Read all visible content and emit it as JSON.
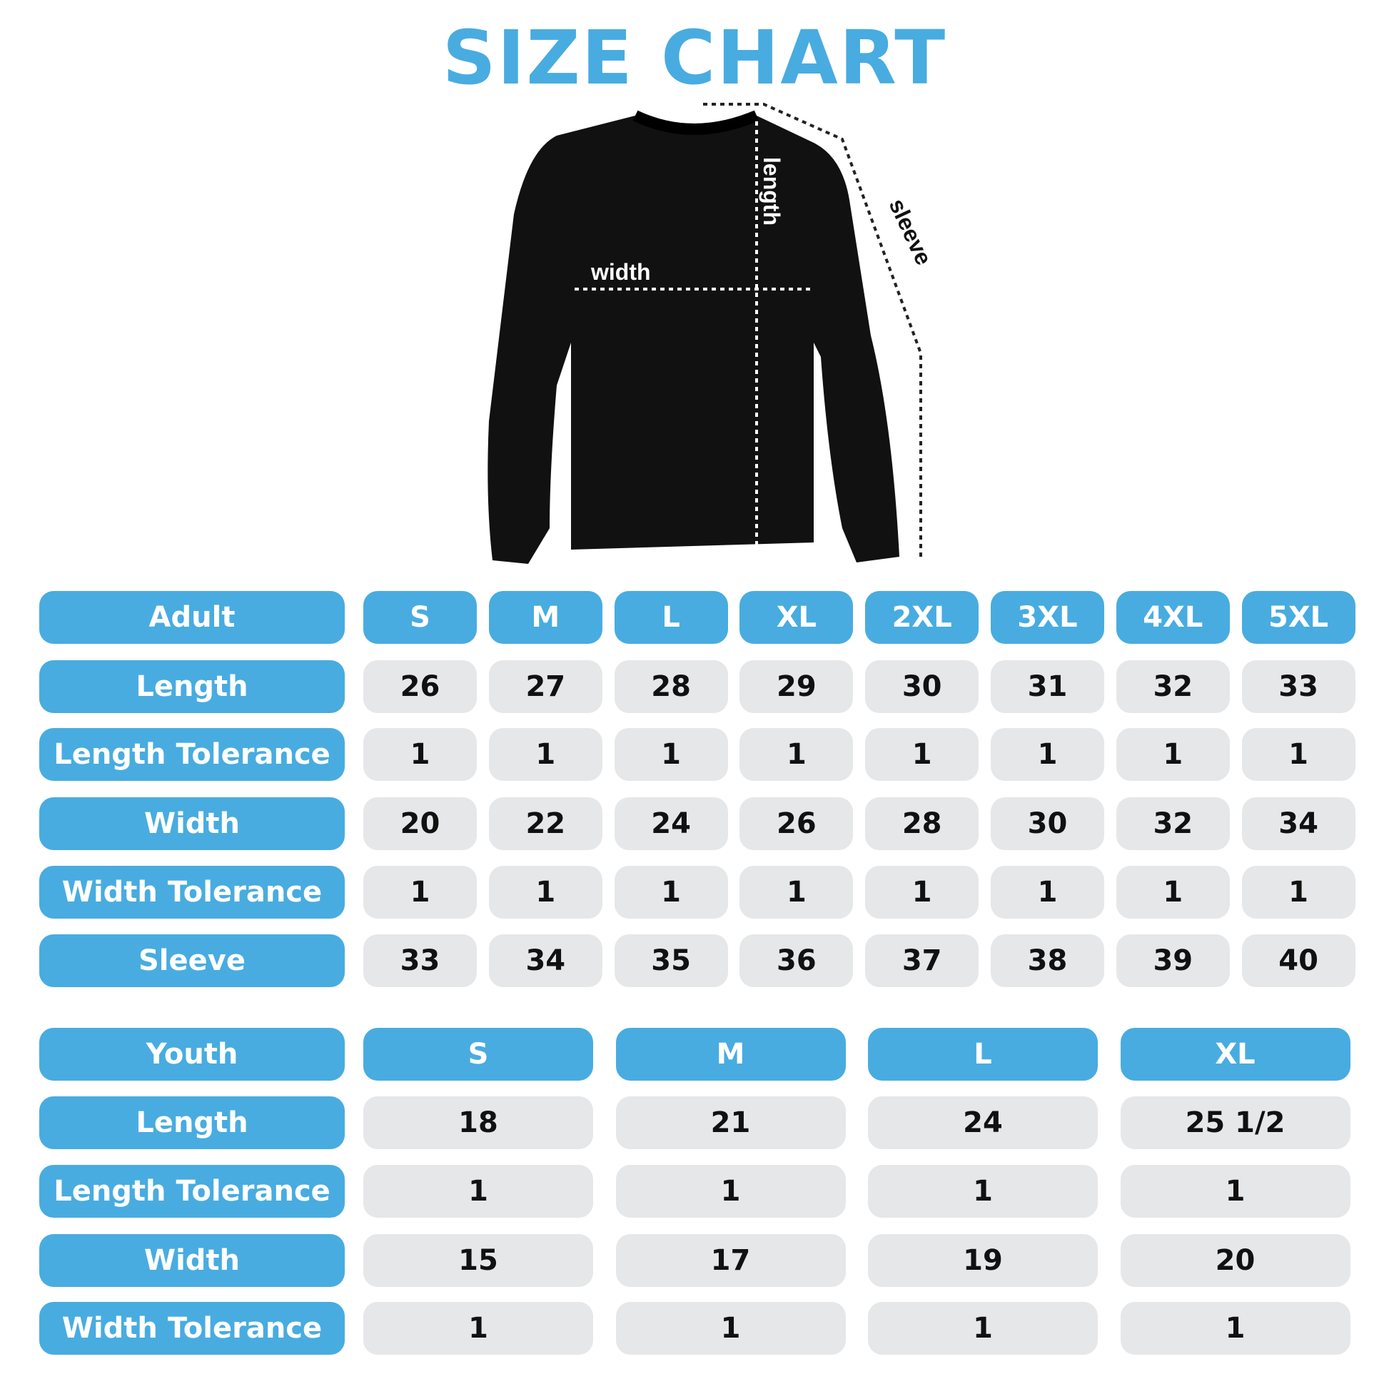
{
  "title": "SIZE CHART",
  "diagram_labels": {
    "length": "length",
    "width": "width",
    "sleeve": "sleeve"
  },
  "colors": {
    "accent": "#48ACE0",
    "cell": "#E6E7E9"
  },
  "adult": {
    "header": "Adult",
    "sizes": [
      "S",
      "M",
      "L",
      "XL",
      "2XL",
      "3XL",
      "4XL",
      "5XL"
    ],
    "rows": [
      {
        "label": "Length",
        "values": [
          "26",
          "27",
          "28",
          "29",
          "30",
          "31",
          "32",
          "33"
        ]
      },
      {
        "label": "Length Tolerance",
        "values": [
          "1",
          "1",
          "1",
          "1",
          "1",
          "1",
          "1",
          "1"
        ]
      },
      {
        "label": "Width",
        "values": [
          "20",
          "22",
          "24",
          "26",
          "28",
          "30",
          "32",
          "34"
        ]
      },
      {
        "label": "Width Tolerance",
        "values": [
          "1",
          "1",
          "1",
          "1",
          "1",
          "1",
          "1",
          "1"
        ]
      },
      {
        "label": "Sleeve",
        "values": [
          "33",
          "34",
          "35",
          "36",
          "37",
          "38",
          "39",
          "40"
        ]
      }
    ]
  },
  "youth": {
    "header": "Youth",
    "sizes": [
      "S",
      "M",
      "L",
      "XL"
    ],
    "rows": [
      {
        "label": "Length",
        "values": [
          "18",
          "21",
          "24",
          "25 1/2"
        ]
      },
      {
        "label": "Length Tolerance",
        "values": [
          "1",
          "1",
          "1",
          "1"
        ]
      },
      {
        "label": "Width",
        "values": [
          "15",
          "17",
          "19",
          "20"
        ]
      },
      {
        "label": "Width Tolerance",
        "values": [
          "1",
          "1",
          "1",
          "1"
        ]
      }
    ]
  }
}
